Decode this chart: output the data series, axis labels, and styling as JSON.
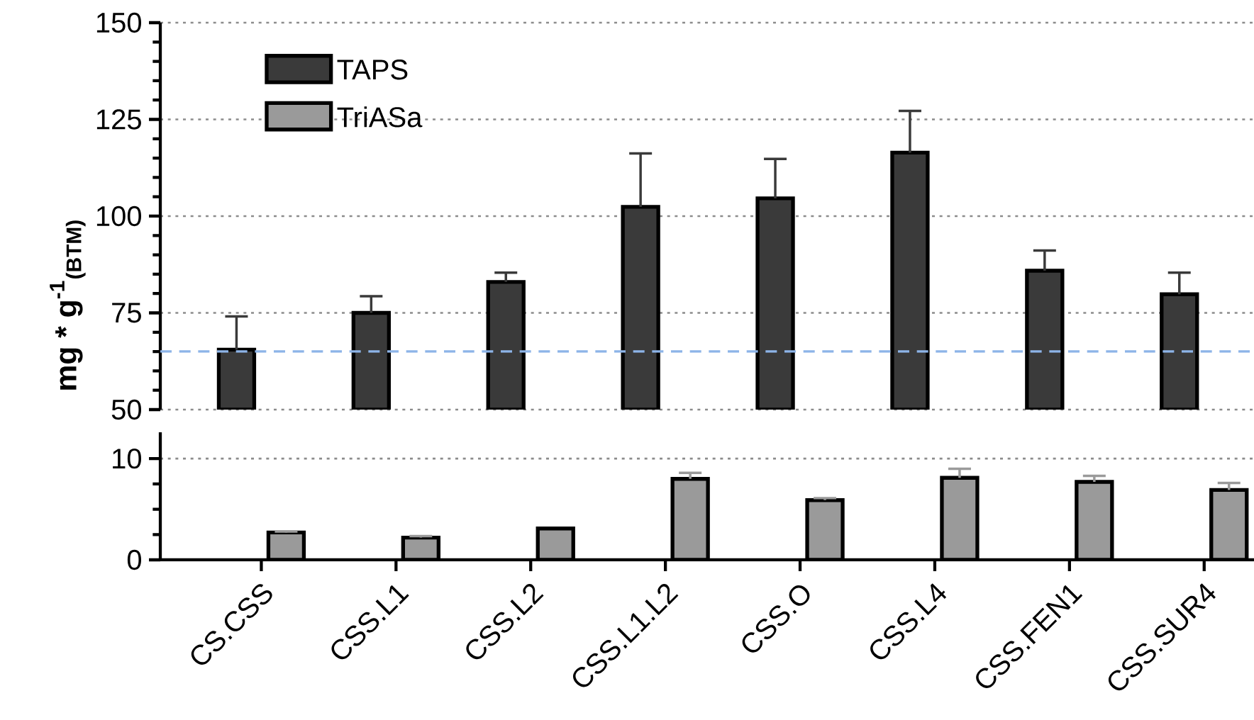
{
  "chart_data": [
    {
      "type": "bar",
      "ylabel": "mg * g$^{-1}$$_{(BTM)}$",
      "categories": [
        null,
        null,
        null,
        null,
        null,
        null,
        null,
        null
      ],
      "tick_labels": "y",
      "ylim": [
        50,
        150
      ],
      "yticks": [
        50,
        75,
        100,
        125,
        150
      ],
      "grid": "y",
      "legend": "top left",
      "series": [
        {
          "name": "TAPS",
          "color": "#3a3a3a",
          "values": [
            65.5,
            75,
            83,
            102.4,
            104.6,
            116.4,
            85.9,
            79.8
          ],
          "errors": [
            [
              65.5,
              74.1
            ],
            [
              75,
              79.3
            ],
            [
              83,
              85.4
            ],
            [
              102.4,
              116.2
            ],
            [
              104.6,
              114.8
            ],
            [
              116.4,
              127.2
            ],
            [
              85.9,
              91.1
            ],
            [
              79.8,
              85.4
            ]
          ]
        },
        {
          "name": "TriASa",
          "color": "#9a9a9a",
          "values": [
            null,
            null,
            null,
            null,
            null,
            null,
            null,
            null
          ]
        }
      ],
      "ref_lines": [
        {
          "axis": "y",
          "value": 65,
          "color": "#8db4e8",
          "line_style": "dashed"
        }
      ]
    },
    {
      "type": "bar",
      "categories": [
        "CS.CSS",
        "CSS.L1",
        "CSS.L2",
        "CSS.L1.L2",
        "CSS.O",
        "CSS.L4",
        "CSS.FEN1",
        "CSS.SUR4"
      ],
      "ylim": [
        0,
        12.6
      ],
      "yticks": [
        0,
        {
          "value": 2.5,
          "label": null
        },
        {
          "value": 5,
          "label": null
        },
        {
          "value": 7.5,
          "label": null
        },
        10
      ],
      "grid": "y",
      "series": [
        {
          "color": "#3a3a3a",
          "values": [
            null,
            null,
            null,
            null,
            null,
            null,
            null,
            null
          ]
        },
        {
          "color": "#9a9a9a",
          "values": [
            2.7,
            2.2,
            3.1,
            8.0,
            5.9,
            8.1,
            7.7,
            6.9
          ],
          "errors": [
            [
              2.7,
              2.8
            ],
            [
              2.2,
              2.35
            ],
            null,
            [
              8.0,
              8.6
            ],
            [
              5.9,
              6.1
            ],
            [
              8.1,
              9.0
            ],
            [
              7.7,
              8.3
            ],
            [
              6.9,
              7.6
            ]
          ]
        }
      ]
    }
  ]
}
